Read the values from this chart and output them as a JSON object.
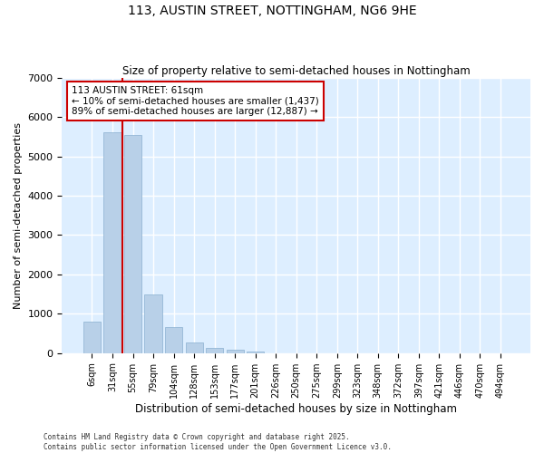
{
  "title": "113, AUSTIN STREET, NOTTINGHAM, NG6 9HE",
  "subtitle": "Size of property relative to semi-detached houses in Nottingham",
  "xlabel": "Distribution of semi-detached houses by size in Nottingham",
  "ylabel": "Number of semi-detached properties",
  "categories": [
    "6sqm",
    "31sqm",
    "55sqm",
    "79sqm",
    "104sqm",
    "128sqm",
    "153sqm",
    "177sqm",
    "201sqm",
    "226sqm",
    "250sqm",
    "275sqm",
    "299sqm",
    "323sqm",
    "348sqm",
    "372sqm",
    "397sqm",
    "421sqm",
    "446sqm",
    "470sqm",
    "494sqm"
  ],
  "values": [
    800,
    5600,
    5550,
    1500,
    650,
    280,
    140,
    80,
    30,
    0,
    0,
    0,
    0,
    0,
    0,
    0,
    0,
    0,
    0,
    0,
    0
  ],
  "bar_color": "#b8d0e8",
  "bar_edge_color": "#8ab0d0",
  "bg_color": "#ddeeff",
  "grid_color": "#ffffff",
  "vline_color": "#cc0000",
  "vline_pos": 1.5,
  "annotation_text": "113 AUSTIN STREET: 61sqm\n← 10% of semi-detached houses are smaller (1,437)\n89% of semi-detached houses are larger (12,887) →",
  "annotation_box_color": "#cc0000",
  "footnote": "Contains HM Land Registry data © Crown copyright and database right 2025.\nContains public sector information licensed under the Open Government Licence v3.0.",
  "ylim": [
    0,
    7000
  ],
  "yticks": [
    0,
    1000,
    2000,
    3000,
    4000,
    5000,
    6000,
    7000
  ]
}
